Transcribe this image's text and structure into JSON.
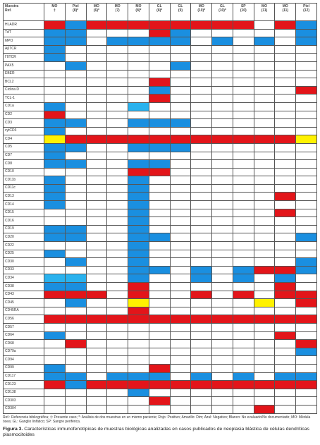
{
  "table": {
    "corner": [
      "Muestra",
      "Ref."
    ],
    "columns": [
      [
        "MO",
        "‡"
      ],
      [
        "Piel",
        "(8)*"
      ],
      [
        "MO",
        "(6)*"
      ],
      [
        "MO",
        "(7)"
      ],
      [
        "MO",
        "(8)*"
      ],
      [
        "GL",
        "(8)*"
      ],
      [
        "GL",
        "(9)"
      ],
      [
        "MO",
        "(10)*"
      ],
      [
        "GL",
        "(10)*"
      ],
      [
        "SP",
        "(10)"
      ],
      [
        "MO",
        "(11)"
      ],
      [
        "MO",
        "(11)"
      ],
      [
        "Piel",
        "(12)"
      ]
    ],
    "palette": {
      "r": "#e3151a",
      "b": "#1a8fe0",
      "l": "#2ab2ee",
      "y": "#fff200",
      "w": "#ffffff"
    },
    "rows": [
      {
        "label": "HLADR",
        "cells": "rbrrrrrrrrwrb"
      },
      {
        "label": "TdT",
        "cells": "bbwwwrbwwwwwb"
      },
      {
        "label": "MPO",
        "cells": "bbwbbbbwbwbwb"
      },
      {
        "label": "AβTCR",
        "cells": "bwwwwwwwwwwww"
      },
      {
        "label": "ΓδTCR",
        "cells": "bwwwwwwwwwwww"
      },
      {
        "label": "PAX5",
        "cells": "wbwwwwbwwwwww"
      },
      {
        "label": "EBER",
        "cells": "wwwwwwwwwwwww"
      },
      {
        "label": "BCL2",
        "cells": "wwwwwrwwwwwww"
      },
      {
        "label": "Ciclina D",
        "cells": "wwwwwbwwwwwwr"
      },
      {
        "label": "TCL-1",
        "cells": "wwwwwrwwwwwww"
      },
      {
        "label": "CD1a",
        "cells": "bwwwlwwwwwwww"
      },
      {
        "label": "CD2",
        "cells": "rwwwwwwwwwwww"
      },
      {
        "label": "CD3",
        "cells": "bbwwbbbwwwwww"
      },
      {
        "label": "cytCD3",
        "cells": "bwwwwwwwwwwww"
      },
      {
        "label": "CD4",
        "cells": "yrrrrrrrrrrry"
      },
      {
        "label": "CD5",
        "cells": "bbwwbbbwwwwww"
      },
      {
        "label": "CD7",
        "cells": "bwwwwwwwwwwww"
      },
      {
        "label": "CD8",
        "cells": "bbwwbbwwwwwww"
      },
      {
        "label": "CD10",
        "cells": "wwwwrrwwwwwww"
      },
      {
        "label": "CD11b",
        "cells": "bwwwbwwwwwwww"
      },
      {
        "label": "CD11c",
        "cells": "bwwwbwwwwwwww"
      },
      {
        "label": "CD13",
        "cells": "bwwwbwwwwwwrw"
      },
      {
        "label": "CD14",
        "cells": "bwwwbwwwwwwww"
      },
      {
        "label": "CD15",
        "cells": "wwwwbwwwwwwrw"
      },
      {
        "label": "CD16",
        "cells": "wwwwbwwwwwwww"
      },
      {
        "label": "CD19",
        "cells": "bbwwbwwwwwwww"
      },
      {
        "label": "CD20",
        "cells": "bbwwbbwwwwwwb"
      },
      {
        "label": "CD22",
        "cells": "wwwwbwwwwwwww"
      },
      {
        "label": "CD25",
        "cells": "bwwwbwwwwwwww"
      },
      {
        "label": "CD30",
        "cells": "wbwwbwwwwwwwb"
      },
      {
        "label": "CD33",
        "cells": "wwwwbbwbwbrrb"
      },
      {
        "label": "CD34",
        "cells": "llwwbwwbwbwbw"
      },
      {
        "label": "CD38",
        "cells": "bbwwrwwwwwwrw"
      },
      {
        "label": "CD43",
        "cells": "rrrwrwwrwrwrr"
      },
      {
        "label": "CD45",
        "cells": "wbwwywwwwwywr"
      },
      {
        "label": "CD45RA",
        "cells": "wwwwrwwwwwwww"
      },
      {
        "label": "CD56",
        "cells": "rrrrrrrrrrrrr"
      },
      {
        "label": "CD57",
        "cells": "wwwwwwwwwwwww"
      },
      {
        "label": "CD64",
        "cells": "bwwwwwwwwwwrw"
      },
      {
        "label": "CD68",
        "cells": "wrwwwwwwwwwwr"
      },
      {
        "label": "CD79a",
        "cells": "wwwwwwwwwwwwb"
      },
      {
        "label": "CD94",
        "cells": "wwwwwwwwwwwww"
      },
      {
        "label": "CD99",
        "cells": "bwwwwrwwwwwww"
      },
      {
        "label": "CD117",
        "cells": "bbwbbbwbwbwbb"
      },
      {
        "label": "CD123",
        "cells": "rbrrrrrrrrrrr"
      },
      {
        "label": "CD138",
        "cells": "wwwwbwwwwwwww"
      },
      {
        "label": "CD303",
        "cells": "wwwwwrwwwwwww"
      },
      {
        "label": "CD304",
        "cells": "wwwwwwwwwwrww"
      }
    ]
  },
  "footnote": "Ref.: Referencia bibliográfica; ‡: Presente caso; *: Análisis de dos muestras en un mismo paciente; Rojo: Positivo; Amarillo: Dim; Azul: Negativo; Blanco: No evaluado/No documentado; MO: Médula ósea; GL: Ganglio linfático; SP: Sangre periférica.",
  "caption": {
    "label": "Figura 3.",
    "text": "Características inmunofenotípicas de muestras biológicas analizadas en casos publicados de neoplasia blástica de células dendríticas plasmocitoides"
  }
}
